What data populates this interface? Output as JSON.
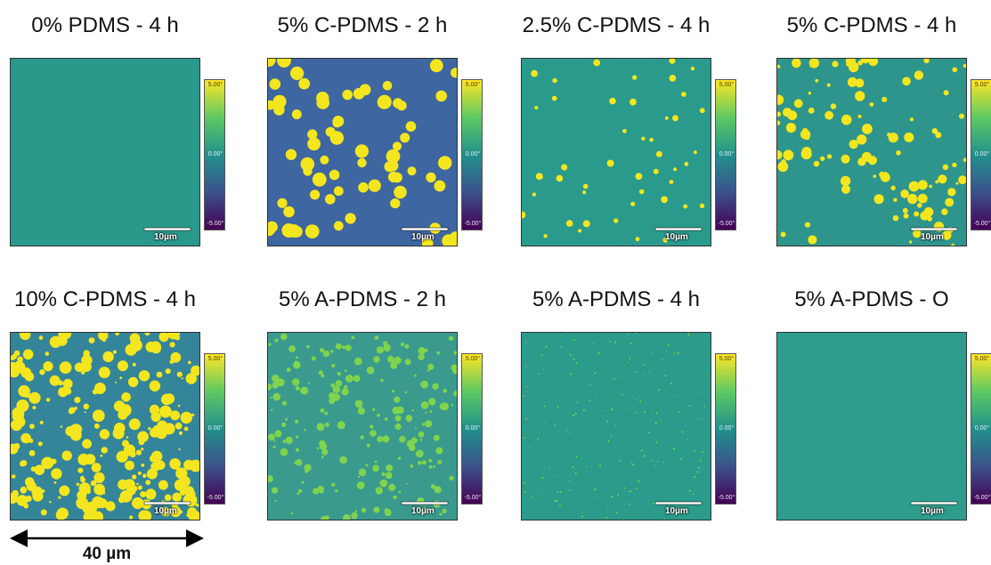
{
  "panels": [
    {
      "title": "0% PDMS - 4 h",
      "scale_bar": "10µm",
      "colorbar": [
        "5.00°",
        "0.00°",
        "-5.00°"
      ]
    },
    {
      "title": "5% C-PDMS - 2 h",
      "scale_bar": "10µm",
      "colorbar": [
        "5.00°",
        "0.00°",
        "-5.00°"
      ]
    },
    {
      "title": "2.5% C-PDMS - 4 h",
      "scale_bar": "10µm",
      "colorbar": [
        "5.00°",
        "0.00°",
        "-5.00°"
      ]
    },
    {
      "title": "5% C-PDMS - 4 h",
      "scale_bar": "10µm",
      "colorbar": [
        "5.00°",
        "0.00°",
        "-5.00°"
      ]
    },
    {
      "title": "10% C-PDMS - 4 h",
      "scale_bar": "10µm",
      "colorbar": [
        "5.00°",
        "0.00°",
        "-5.00°"
      ]
    },
    {
      "title": "5% A-PDMS - 2 h",
      "scale_bar": "10µm",
      "colorbar": [
        "5.00°",
        "0.00°",
        "-5.00°"
      ]
    },
    {
      "title": "5% A-PDMS - 4 h",
      "scale_bar": "10µm",
      "colorbar": [
        "5.00°",
        "0.00°",
        "-5.00°"
      ]
    },
    {
      "title": "5% A-PDMS - O",
      "scale_bar": "10µm",
      "colorbar": [
        "5.00°",
        "0.00°",
        "-5.00°"
      ]
    }
  ],
  "dimension": "40 µm"
}
